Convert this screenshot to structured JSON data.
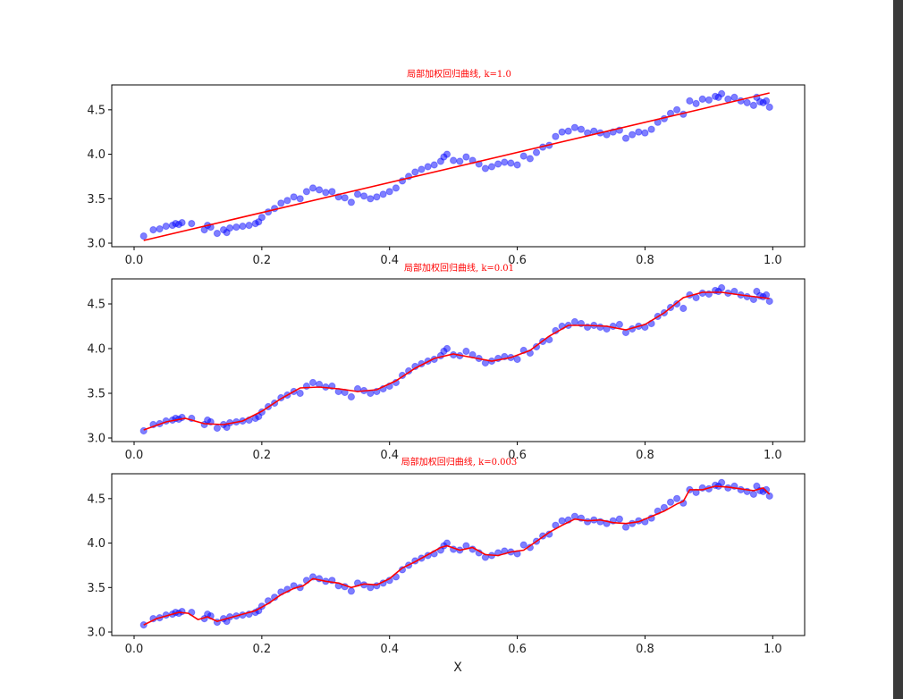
{
  "figure": {
    "xlabel": "X",
    "scrollbar_color": "#3a3a3a"
  },
  "chart_data": [
    {
      "type": "scatter",
      "title": "局部加权回归曲线, k=1.0",
      "title_color": "#ff0000",
      "xlabel": "",
      "ylabel": "",
      "xlim": [
        -0.035,
        1.05
      ],
      "ylim": [
        2.96,
        4.78
      ],
      "xticks": [
        "0.0",
        "0.2",
        "0.4",
        "0.6",
        "0.8",
        "1.0"
      ],
      "yticks": [
        "3.0",
        "3.5",
        "4.0",
        "4.5"
      ],
      "points_color": "#0000ff",
      "line_color": "#ff0000",
      "fit_x": [
        0.015,
        0.995
      ],
      "fit_y": [
        3.03,
        4.69
      ]
    },
    {
      "type": "scatter",
      "title": "局部加权回归曲线, k=0.01",
      "title_color": "#ff0000",
      "xlabel": "",
      "ylabel": "",
      "xlim": [
        -0.035,
        1.05
      ],
      "ylim": [
        2.96,
        4.78
      ],
      "xticks": [
        "0.0",
        "0.2",
        "0.4",
        "0.6",
        "0.8",
        "1.0"
      ],
      "yticks": [
        "3.0",
        "3.5",
        "4.0",
        "4.5"
      ],
      "points_color": "#0000ff",
      "line_color": "#ff0000",
      "fit_x": [
        0.015,
        0.05,
        0.08,
        0.11,
        0.14,
        0.17,
        0.2,
        0.23,
        0.26,
        0.29,
        0.32,
        0.35,
        0.38,
        0.41,
        0.44,
        0.47,
        0.5,
        0.53,
        0.56,
        0.59,
        0.62,
        0.65,
        0.68,
        0.71,
        0.74,
        0.77,
        0.8,
        0.83,
        0.86,
        0.89,
        0.92,
        0.95,
        0.995
      ],
      "fit_y": [
        3.09,
        3.18,
        3.22,
        3.16,
        3.15,
        3.19,
        3.3,
        3.44,
        3.56,
        3.57,
        3.55,
        3.52,
        3.54,
        3.64,
        3.78,
        3.89,
        3.94,
        3.9,
        3.86,
        3.9,
        3.98,
        4.14,
        4.26,
        4.26,
        4.25,
        4.21,
        4.27,
        4.4,
        4.57,
        4.63,
        4.63,
        4.6,
        4.56
      ]
    },
    {
      "type": "scatter",
      "title": "局部加权回归曲线, k=0.003",
      "title_color": "#ff0000",
      "xlabel": "",
      "ylabel": "",
      "xlim": [
        -0.035,
        1.05
      ],
      "ylim": [
        2.96,
        4.78
      ],
      "xticks": [
        "0.0",
        "0.2",
        "0.4",
        "0.6",
        "0.8",
        "1.0"
      ],
      "yticks": [
        "3.0",
        "3.5",
        "4.0",
        "4.5"
      ],
      "points_color": "#0000ff",
      "line_color": "#ff0000",
      "fit_x": [
        0.015,
        0.035,
        0.05,
        0.07,
        0.085,
        0.1,
        0.115,
        0.13,
        0.15,
        0.17,
        0.19,
        0.21,
        0.23,
        0.25,
        0.265,
        0.28,
        0.3,
        0.32,
        0.34,
        0.36,
        0.38,
        0.4,
        0.42,
        0.44,
        0.46,
        0.48,
        0.49,
        0.51,
        0.53,
        0.55,
        0.57,
        0.59,
        0.61,
        0.63,
        0.65,
        0.67,
        0.69,
        0.71,
        0.73,
        0.75,
        0.77,
        0.79,
        0.81,
        0.83,
        0.85,
        0.86,
        0.87,
        0.89,
        0.91,
        0.93,
        0.95,
        0.97,
        0.985,
        0.995
      ],
      "fit_y": [
        3.08,
        3.15,
        3.18,
        3.22,
        3.21,
        3.14,
        3.17,
        3.12,
        3.16,
        3.2,
        3.24,
        3.32,
        3.42,
        3.49,
        3.52,
        3.6,
        3.57,
        3.55,
        3.5,
        3.54,
        3.53,
        3.6,
        3.72,
        3.79,
        3.87,
        3.95,
        3.97,
        3.92,
        3.95,
        3.87,
        3.86,
        3.9,
        3.92,
        4.02,
        4.12,
        4.2,
        4.27,
        4.25,
        4.26,
        4.23,
        4.22,
        4.24,
        4.3,
        4.36,
        4.44,
        4.47,
        4.6,
        4.6,
        4.64,
        4.63,
        4.61,
        4.59,
        4.62,
        4.55
      ]
    }
  ],
  "scatter_points": {
    "x": [
      0.015,
      0.03,
      0.04,
      0.05,
      0.06,
      0.065,
      0.07,
      0.075,
      0.09,
      0.11,
      0.115,
      0.12,
      0.13,
      0.14,
      0.145,
      0.15,
      0.16,
      0.17,
      0.18,
      0.19,
      0.195,
      0.2,
      0.21,
      0.22,
      0.23,
      0.24,
      0.25,
      0.26,
      0.27,
      0.28,
      0.29,
      0.3,
      0.31,
      0.32,
      0.33,
      0.34,
      0.35,
      0.36,
      0.37,
      0.38,
      0.39,
      0.4,
      0.41,
      0.42,
      0.43,
      0.44,
      0.45,
      0.46,
      0.47,
      0.48,
      0.485,
      0.49,
      0.5,
      0.51,
      0.52,
      0.53,
      0.54,
      0.55,
      0.56,
      0.57,
      0.58,
      0.59,
      0.6,
      0.61,
      0.62,
      0.63,
      0.64,
      0.65,
      0.66,
      0.67,
      0.68,
      0.69,
      0.7,
      0.71,
      0.72,
      0.73,
      0.74,
      0.75,
      0.76,
      0.77,
      0.78,
      0.79,
      0.8,
      0.81,
      0.82,
      0.83,
      0.84,
      0.85,
      0.86,
      0.87,
      0.88,
      0.89,
      0.9,
      0.91,
      0.915,
      0.92,
      0.93,
      0.94,
      0.95,
      0.96,
      0.97,
      0.975,
      0.98,
      0.985,
      0.99,
      0.995
    ],
    "y": [
      3.08,
      3.15,
      3.16,
      3.19,
      3.2,
      3.22,
      3.21,
      3.23,
      3.22,
      3.15,
      3.2,
      3.18,
      3.11,
      3.15,
      3.12,
      3.17,
      3.18,
      3.19,
      3.2,
      3.22,
      3.24,
      3.29,
      3.35,
      3.39,
      3.45,
      3.48,
      3.52,
      3.5,
      3.58,
      3.62,
      3.6,
      3.57,
      3.58,
      3.52,
      3.51,
      3.46,
      3.55,
      3.53,
      3.5,
      3.52,
      3.55,
      3.58,
      3.62,
      3.7,
      3.75,
      3.8,
      3.83,
      3.86,
      3.88,
      3.92,
      3.97,
      4.0,
      3.93,
      3.92,
      3.97,
      3.93,
      3.89,
      3.84,
      3.86,
      3.89,
      3.91,
      3.9,
      3.88,
      3.98,
      3.95,
      4.02,
      4.08,
      4.1,
      4.2,
      4.25,
      4.26,
      4.3,
      4.28,
      4.24,
      4.26,
      4.24,
      4.22,
      4.25,
      4.27,
      4.18,
      4.22,
      4.25,
      4.24,
      4.28,
      4.36,
      4.4,
      4.46,
      4.5,
      4.45,
      4.6,
      4.57,
      4.62,
      4.61,
      4.65,
      4.64,
      4.68,
      4.62,
      4.64,
      4.6,
      4.58,
      4.55,
      4.64,
      4.59,
      4.58,
      4.6,
      4.53
    ]
  }
}
